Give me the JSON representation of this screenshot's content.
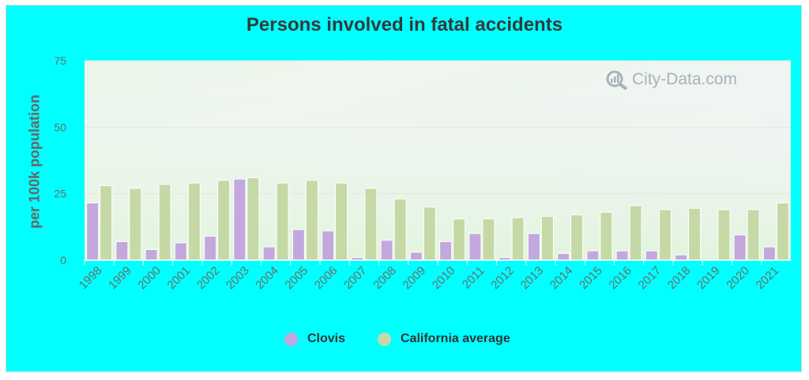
{
  "watermark": "City-Data.com",
  "colors": {
    "frame": "#00ffff",
    "clovis": "#c3a8dd",
    "california": "#c5d9a6",
    "text": "#333a3a",
    "axis": "#666666"
  },
  "chart_data": {
    "type": "bar",
    "title": "Persons involved in fatal accidents",
    "xlabel": "",
    "ylabel": "per 100k population",
    "ylim": [
      0,
      75
    ],
    "yticks": [
      0,
      25,
      50,
      75
    ],
    "grid": true,
    "legend_position": "bottom",
    "categories": [
      "1998",
      "1999",
      "2000",
      "2001",
      "2002",
      "2003",
      "2004",
      "2005",
      "2006",
      "2007",
      "2008",
      "2009",
      "2010",
      "2011",
      "2012",
      "2013",
      "2014",
      "2015",
      "2016",
      "2017",
      "2018",
      "2019",
      "2020",
      "2021"
    ],
    "series": [
      {
        "name": "Clovis",
        "color": "#c3a8dd",
        "values": [
          21.5,
          7,
          4,
          6.5,
          9,
          30.5,
          5,
          11.5,
          11,
          1,
          7.5,
          3,
          7,
          10,
          1,
          10,
          2.5,
          3.5,
          3.5,
          3.5,
          2,
          0,
          9.5,
          5
        ]
      },
      {
        "name": "California average",
        "color": "#c5d9a6",
        "values": [
          28,
          27,
          28.5,
          29,
          30,
          31,
          29,
          30,
          29,
          27,
          23,
          20,
          15.5,
          15.5,
          16,
          16.5,
          17,
          18,
          20.5,
          19,
          19.5,
          19,
          19,
          21.5
        ]
      }
    ]
  }
}
